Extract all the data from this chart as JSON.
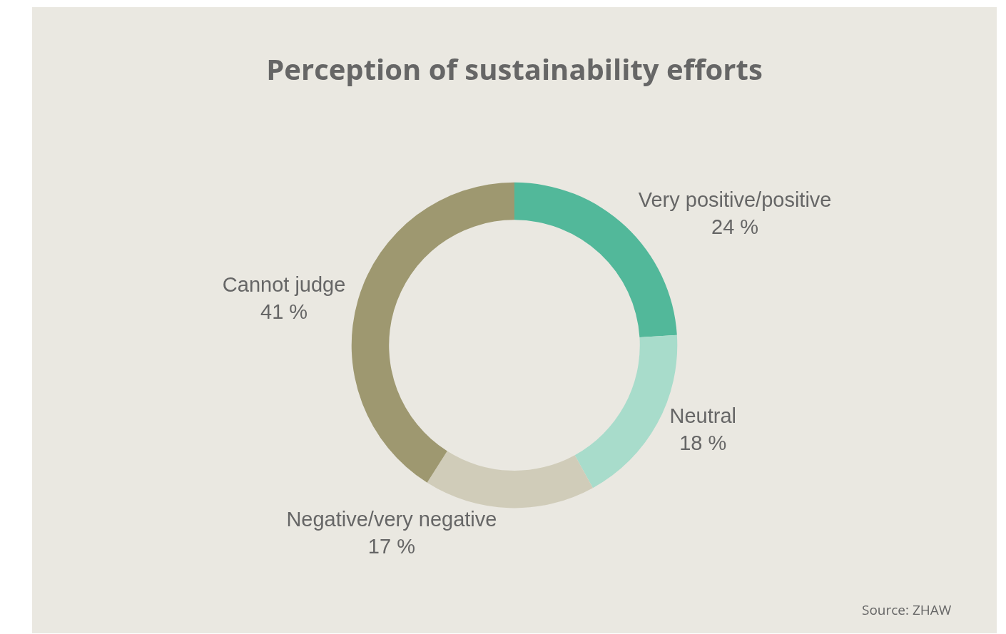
{
  "chart_data": {
    "type": "donut",
    "title": "Perception of sustainability efforts",
    "categories": [
      "Very positive/positive",
      "Neutral",
      "Negative/very negative",
      "Cannot judge"
    ],
    "values": [
      24,
      18,
      17,
      41
    ],
    "value_labels": [
      "24 %",
      "18 %",
      "17 %",
      "41 %"
    ],
    "colors": [
      "#52b89a",
      "#a8dccb",
      "#d0ccb9",
      "#9e9870"
    ],
    "legend": false,
    "annotations": [
      "Source: ZHAW"
    ]
  }
}
